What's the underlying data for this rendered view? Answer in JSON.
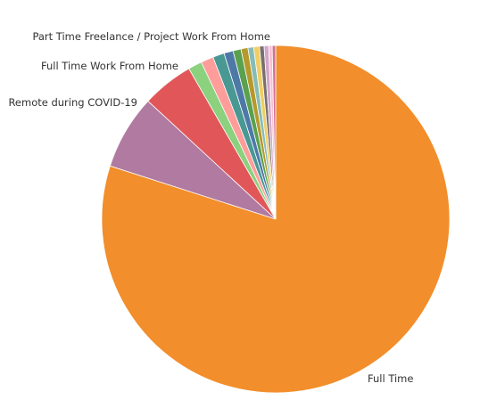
{
  "chart_data": {
    "type": "pie",
    "title": "",
    "slices": [
      {
        "label": "Full Time",
        "value": 75.0,
        "color": "#f28e2b",
        "show_label": true
      },
      {
        "label": "Remote during COVID-19",
        "value": 6.5,
        "color": "#b07aa1",
        "show_label": true
      },
      {
        "label": "Full Time Work From Home",
        "value": 4.5,
        "color": "#e15759",
        "show_label": true
      },
      {
        "label": "",
        "value": 1.2,
        "color": "#8cd17d",
        "show_label": false
      },
      {
        "label": "",
        "value": 1.1,
        "color": "#ff9d9a",
        "show_label": false
      },
      {
        "label": "",
        "value": 1.0,
        "color": "#499894",
        "show_label": false
      },
      {
        "label": "",
        "value": 0.8,
        "color": "#4e79a7",
        "show_label": false
      },
      {
        "label": "",
        "value": 0.7,
        "color": "#59a14f",
        "show_label": false
      },
      {
        "label": "",
        "value": 0.6,
        "color": "#b6992d",
        "show_label": false
      },
      {
        "label": "",
        "value": 0.5,
        "color": "#86bcb6",
        "show_label": false
      },
      {
        "label": "",
        "value": 0.5,
        "color": "#f1ce63",
        "show_label": false
      },
      {
        "label": "",
        "value": 0.4,
        "color": "#79706e",
        "show_label": false
      },
      {
        "label": "",
        "value": 0.4,
        "color": "#d4a6c8",
        "show_label": false
      },
      {
        "label": "",
        "value": 0.3,
        "color": "#fabfd2",
        "show_label": false
      },
      {
        "label": "Part Time Freelance / Project Work From Home",
        "value": 0.3,
        "color": "#d37295",
        "show_label": true
      }
    ]
  }
}
